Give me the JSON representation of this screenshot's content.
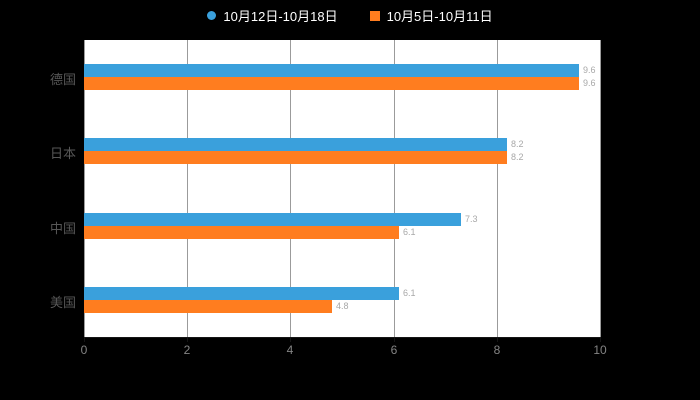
{
  "chart_data": {
    "type": "bar",
    "orientation": "horizontal",
    "title": "",
    "categories": [
      "德国",
      "日本",
      "中国",
      "美国"
    ],
    "series": [
      {
        "name": "10月12日-10月18日",
        "marker": "circle",
        "color": "#3AA0DC",
        "values": [
          9.6,
          8.2,
          7.3,
          6.1
        ]
      },
      {
        "name": "10月5日-10月11日",
        "marker": "square",
        "color": "#FF7D1F",
        "values": [
          9.6,
          8.2,
          6.1,
          4.8
        ]
      }
    ],
    "xlim": [
      0,
      10
    ],
    "xticks": [
      0,
      2,
      4,
      6,
      8,
      10
    ],
    "grid": true,
    "legend_position": "top",
    "background": "#000000",
    "plot_background": "#ffffff",
    "xlabel": "",
    "ylabel": ""
  }
}
